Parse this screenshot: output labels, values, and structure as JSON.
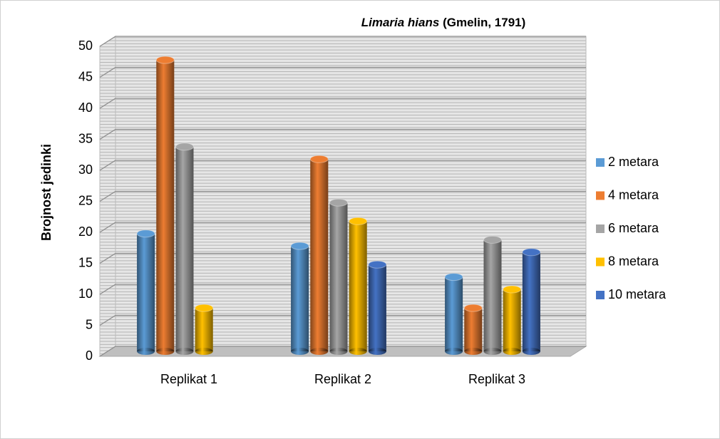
{
  "chart_data": {
    "type": "bar3d",
    "title": {
      "species": "Limaria hians",
      "author": "(Gmelin, 1791)"
    },
    "ylabel": "Brojnost jedinki",
    "categories": [
      "Replikat 1",
      "Replikat 2",
      "Replikat 3"
    ],
    "series": [
      {
        "name": "2 metara",
        "color": "#5b9bd5",
        "values": [
          19,
          17,
          12
        ]
      },
      {
        "name": "4 metara",
        "color": "#ed7d31",
        "values": [
          47,
          31,
          7
        ]
      },
      {
        "name": "6 metara",
        "color": "#a5a5a5",
        "values": [
          33,
          24,
          18
        ]
      },
      {
        "name": "8 metara",
        "color": "#ffc000",
        "values": [
          7,
          21,
          10
        ]
      },
      {
        "name": "10 metara",
        "color": "#4472c4",
        "values": [
          0,
          14,
          16
        ]
      }
    ],
    "ylim": [
      0,
      50
    ],
    "yticks": [
      0,
      5,
      10,
      15,
      20,
      25,
      30,
      35,
      40,
      45,
      50
    ],
    "grid": true,
    "legend": "right"
  }
}
